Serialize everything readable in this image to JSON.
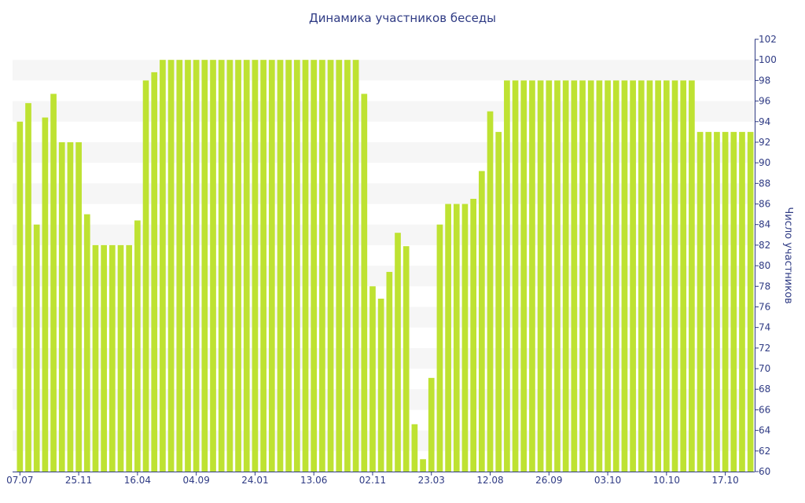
{
  "chart_data": {
    "type": "bar",
    "title": "Динамика участников беседы",
    "ylabel": "Число участников",
    "xlabel": "",
    "ylim": [
      60,
      102
    ],
    "y_ticks": [
      60,
      62,
      64,
      66,
      68,
      70,
      72,
      74,
      76,
      78,
      80,
      82,
      84,
      86,
      88,
      90,
      92,
      94,
      96,
      98,
      100,
      102
    ],
    "y_axis_side": "right",
    "x_tick_labels": [
      {
        "label": "07.07",
        "index": 0
      },
      {
        "label": "25.11",
        "index": 7
      },
      {
        "label": "16.04",
        "index": 14
      },
      {
        "label": "04.09",
        "index": 21
      },
      {
        "label": "24.01",
        "index": 28
      },
      {
        "label": "13.06",
        "index": 35
      },
      {
        "label": "02.11",
        "index": 42
      },
      {
        "label": "23.03",
        "index": 49
      },
      {
        "label": "12.08",
        "index": 56
      },
      {
        "label": "26.09",
        "index": 63
      },
      {
        "label": "03.10",
        "index": 70
      },
      {
        "label": "10.10",
        "index": 77
      },
      {
        "label": "17.10",
        "index": 84
      }
    ],
    "values": [
      94,
      95.8,
      84,
      94.4,
      96.7,
      92,
      92,
      92,
      85,
      82,
      82,
      82,
      82,
      82,
      84.4,
      98,
      98.8,
      100,
      100,
      100,
      100,
      100,
      100,
      100,
      100,
      100,
      100,
      100,
      100,
      100,
      100,
      100,
      100,
      100,
      100,
      100,
      100,
      100,
      100,
      100,
      100,
      96.7,
      78,
      76.8,
      79.4,
      83.2,
      81.9,
      64.6,
      61.2,
      69.1,
      84,
      86,
      86,
      86,
      86.5,
      89.2,
      95,
      93,
      98,
      98,
      98,
      98,
      98,
      98,
      98,
      98,
      98,
      98,
      98,
      98,
      98,
      98,
      98,
      98,
      98,
      98,
      98,
      98,
      98,
      98,
      98,
      93,
      93,
      93,
      93,
      93,
      93,
      93
    ],
    "grid": "horizontal-bands",
    "legend": "none",
    "colors": {
      "bar": "#bee232",
      "band": "#f6f6f6",
      "text": "#2f3b84",
      "axis": "#2f3b84"
    }
  }
}
